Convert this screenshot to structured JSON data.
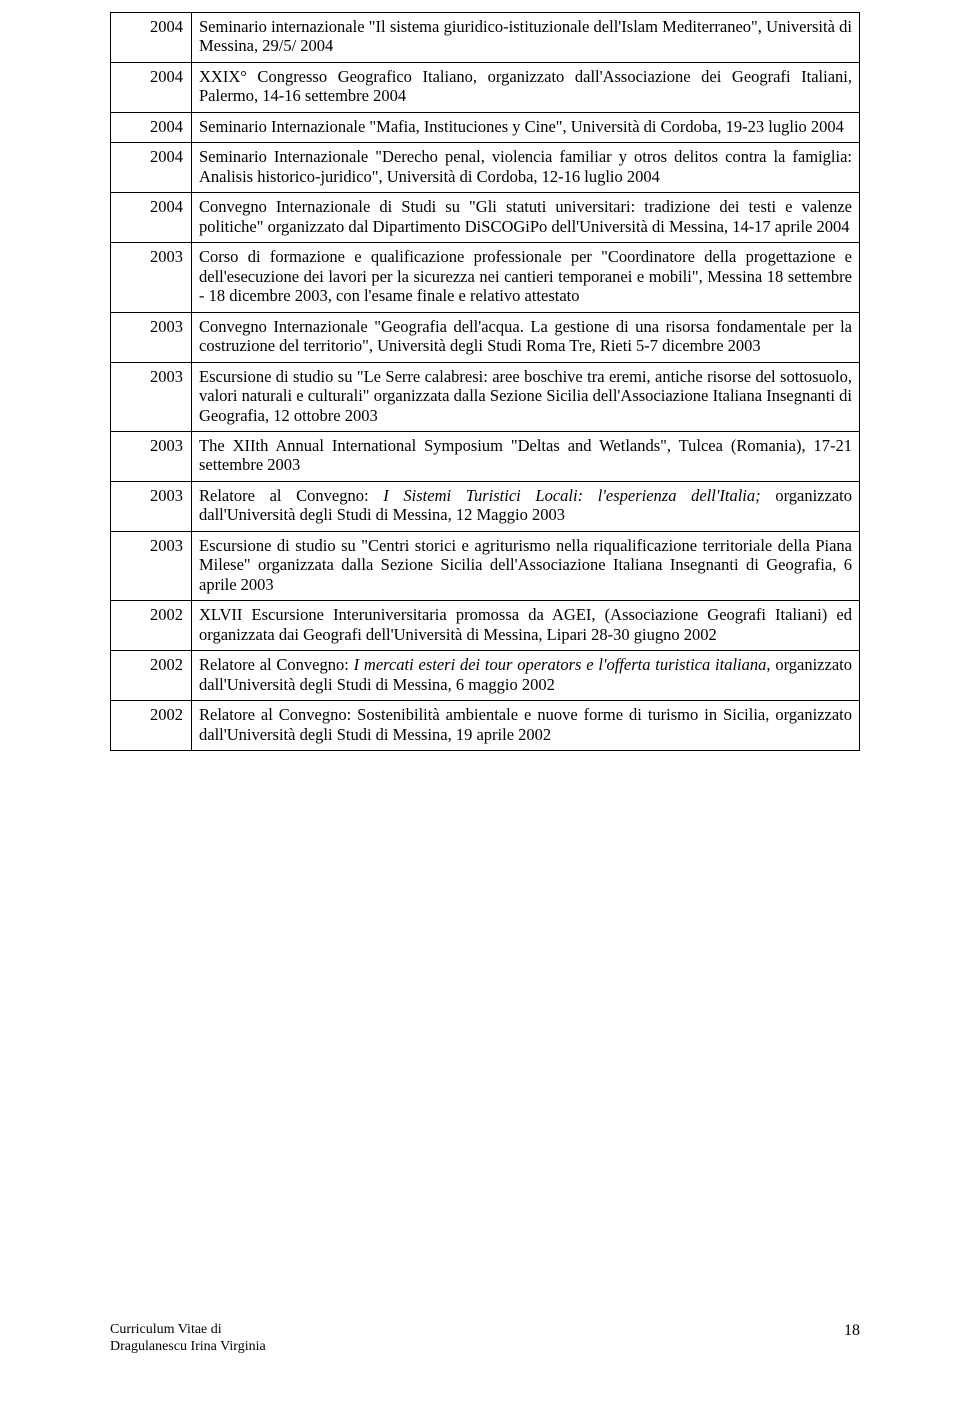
{
  "rows": [
    {
      "year": "2004",
      "desc": "Seminario internazionale \"Il sistema giuridico-istituzionale dell'Islam Mediterraneo\", Università di Messina, 29/5/ 2004"
    },
    {
      "year": "2004",
      "desc": "XXIX° Congresso Geografico Italiano, organizzato dall'Associazione dei Geografi Italiani, Palermo, 14-16 settembre 2004"
    },
    {
      "year": "2004",
      "desc": "Seminario Internazionale \"Mafia, Instituciones y Cine\", Università di Cordoba, 19-23 luglio 2004"
    },
    {
      "year": "2004",
      "desc": "Seminario Internazionale \"Derecho penal, violencia familiar y otros delitos contra la famiglia: Analisis historico-juridico\", Università di Cordoba, 12-16 luglio 2004"
    },
    {
      "year": "2004",
      "desc": "Convegno Internazionale di Studi su \"Gli statuti universitari: tradizione dei testi e valenze politiche\" organizzato dal Dipartimento DiSCOGiPo dell'Università di Messina, 14-17 aprile 2004"
    },
    {
      "year": "2003",
      "desc": "Corso di formazione e qualificazione professionale per \"Coordinatore della progettazione e dell'esecuzione dei lavori per la sicurezza nei cantieri temporanei e mobili\", Messina 18 settembre - 18 dicembre 2003, con l'esame finale e relativo attestato"
    },
    {
      "year": "2003",
      "desc": "Convegno Internazionale \"Geografia dell'acqua. La gestione di una risorsa fondamentale per la costruzione del territorio\", Università degli Studi Roma Tre, Rieti 5-7 dicembre 2003"
    },
    {
      "year": "2003",
      "desc": "Escursione di studio su \"Le Serre calabresi: aree boschive tra eremi, antiche risorse del sottosuolo, valori naturali e culturali\" organizzata dalla Sezione Sicilia dell'Associazione Italiana Insegnanti di Geografia, 12 ottobre 2003"
    },
    {
      "year": "2003",
      "desc": "The XIIth Annual International Symposium \"Deltas and Wetlands\", Tulcea (Romania), 17-21 settembre 2003"
    },
    {
      "year": "2003",
      "desc_html": "Relatore al Convegno: <span class=\"it\">I Sistemi Turistici Locali: l'esperienza dell'Italia;</span> organizzato dall'Università degli Studi di Messina, 12 Maggio 2003"
    },
    {
      "year": "2003",
      "desc": "Escursione di studio su \"Centri storici e agriturismo nella riqualificazione territoriale della Piana Milese\" organizzata dalla Sezione Sicilia dell'Associazione Italiana Insegnanti di Geografia, 6 aprile 2003"
    },
    {
      "year": "2002",
      "desc": "XLVII Escursione Interuniversitaria promossa da AGEI, (Associazione Geografi Italiani) ed organizzata dai Geografi dell'Università di Messina, Lipari 28-30 giugno 2002"
    },
    {
      "year": "2002",
      "desc_html": "Relatore al Convegno: <span class=\"it\">I mercati esteri dei tour operators e l'offerta turistica italiana</span>, organizzato dall'Università degli Studi di Messina, 6 maggio 2002"
    },
    {
      "year": "2002",
      "desc": "Relatore al Convegno: Sostenibilità ambientale e nuove forme di turismo in Sicilia, organizzato dall'Università degli Studi di Messina, 19 aprile 2002"
    }
  ],
  "footer": {
    "line1": "Curriculum Vitae di",
    "line2": "Dragulanescu Irina Virginia",
    "page": "18"
  }
}
